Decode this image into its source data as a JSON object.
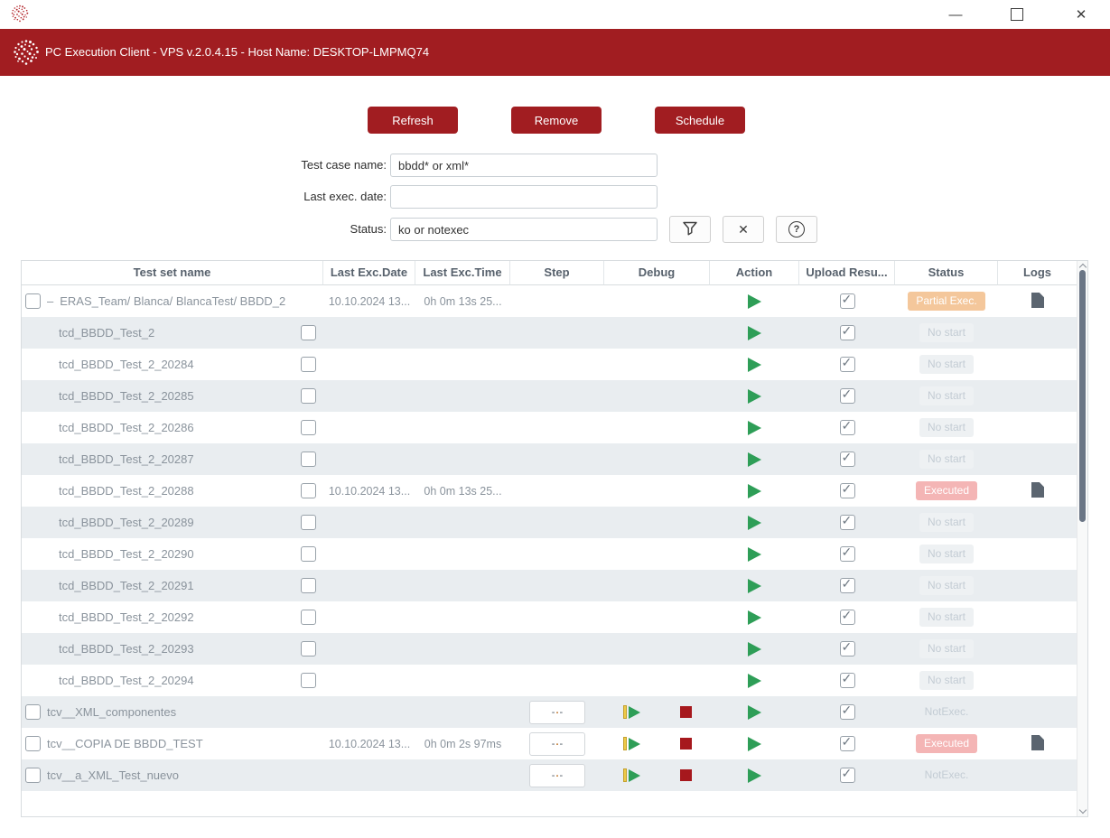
{
  "theme": {
    "brand_red": "#a11d21",
    "play_green": "#2e9e57",
    "debug_yellow": "#edca49",
    "stop_red": "#a6181d",
    "row_stripe": "#e9edf0",
    "partial_badge": "#f4c79b",
    "executed_badge": "#f4b5b5",
    "muted_status_text": "#c3ccd4",
    "row_text": "#8a939c",
    "header_text": "#57616c"
  },
  "titlebar": {
    "minimize_glyph": "—",
    "close_glyph": "✕",
    "icons": [
      "minimize-icon",
      "maximize-icon",
      "close-icon",
      "app-favicon-dotted-sphere"
    ]
  },
  "banner": {
    "title": "PC Execution Client - VPS v.2.0.4.15 - Host Name: DESKTOP-LMPMQ74",
    "logo": "dotted-sphere-logo"
  },
  "actions": {
    "refresh": "Refresh",
    "remove": "Remove",
    "schedule": "Schedule"
  },
  "filters": {
    "test_case": {
      "label": "Test case name:",
      "value": "bbdd* or xml*"
    },
    "last_exec_date": {
      "label": "Last exec. date:",
      "value": ""
    },
    "status": {
      "label": "Status:",
      "value": "ko or notexec"
    },
    "filter_icon": "funnel-icon",
    "clear_glyph": "✕",
    "help_glyph": "?"
  },
  "table": {
    "headers": [
      "Test set name",
      "Last Exc.Date",
      "Last Exc.Time",
      "Step",
      "Debug",
      "Action",
      "Upload Resu...",
      "Status",
      "Logs"
    ],
    "step_placeholder": "-.-",
    "rows": [
      {
        "kind": "parent",
        "checkbox": "left",
        "expander": "–",
        "name": "ERAS_Team/ Blanca/ BlancaTest/ BBDD_2",
        "date": "10.10.2024 13...",
        "time": "0h 0m 13s 25...",
        "step": false,
        "debug": false,
        "action": true,
        "upload": true,
        "status": {
          "label": "Partial Exec.",
          "kind": "partial"
        },
        "logs": true
      },
      {
        "kind": "child",
        "checkbox": "right",
        "name": "tcd_BBDD_Test_2",
        "date": "",
        "time": "",
        "step": false,
        "debug": false,
        "action": true,
        "upload": true,
        "status": {
          "label": "No start",
          "kind": "nostart"
        },
        "logs": false
      },
      {
        "kind": "child",
        "checkbox": "right",
        "name": "tcd_BBDD_Test_2_20284",
        "date": "",
        "time": "",
        "step": false,
        "debug": false,
        "action": true,
        "upload": true,
        "status": {
          "label": "No start",
          "kind": "nostart"
        },
        "logs": false
      },
      {
        "kind": "child",
        "checkbox": "right",
        "name": "tcd_BBDD_Test_2_20285",
        "date": "",
        "time": "",
        "step": false,
        "debug": false,
        "action": true,
        "upload": true,
        "status": {
          "label": "No start",
          "kind": "nostart"
        },
        "logs": false
      },
      {
        "kind": "child",
        "checkbox": "right",
        "name": "tcd_BBDD_Test_2_20286",
        "date": "",
        "time": "",
        "step": false,
        "debug": false,
        "action": true,
        "upload": true,
        "status": {
          "label": "No start",
          "kind": "nostart"
        },
        "logs": false
      },
      {
        "kind": "child",
        "checkbox": "right",
        "name": "tcd_BBDD_Test_2_20287",
        "date": "",
        "time": "",
        "step": false,
        "debug": false,
        "action": true,
        "upload": true,
        "status": {
          "label": "No start",
          "kind": "nostart"
        },
        "logs": false
      },
      {
        "kind": "child",
        "checkbox": "right",
        "name": "tcd_BBDD_Test_2_20288",
        "date": "10.10.2024 13...",
        "time": "0h 0m 13s 25...",
        "step": false,
        "debug": false,
        "action": true,
        "upload": true,
        "status": {
          "label": "Executed",
          "kind": "executed"
        },
        "logs": true
      },
      {
        "kind": "child",
        "checkbox": "right",
        "name": "tcd_BBDD_Test_2_20289",
        "date": "",
        "time": "",
        "step": false,
        "debug": false,
        "action": true,
        "upload": true,
        "status": {
          "label": "No start",
          "kind": "nostart"
        },
        "logs": false
      },
      {
        "kind": "child",
        "checkbox": "right",
        "name": "tcd_BBDD_Test_2_20290",
        "date": "",
        "time": "",
        "step": false,
        "debug": false,
        "action": true,
        "upload": true,
        "status": {
          "label": "No start",
          "kind": "nostart"
        },
        "logs": false
      },
      {
        "kind": "child",
        "checkbox": "right",
        "name": "tcd_BBDD_Test_2_20291",
        "date": "",
        "time": "",
        "step": false,
        "debug": false,
        "action": true,
        "upload": true,
        "status": {
          "label": "No start",
          "kind": "nostart"
        },
        "logs": false
      },
      {
        "kind": "child",
        "checkbox": "right",
        "name": "tcd_BBDD_Test_2_20292",
        "date": "",
        "time": "",
        "step": false,
        "debug": false,
        "action": true,
        "upload": true,
        "status": {
          "label": "No start",
          "kind": "nostart"
        },
        "logs": false
      },
      {
        "kind": "child",
        "checkbox": "right",
        "name": "tcd_BBDD_Test_2_20293",
        "date": "",
        "time": "",
        "step": false,
        "debug": false,
        "action": true,
        "upload": true,
        "status": {
          "label": "No start",
          "kind": "nostart"
        },
        "logs": false
      },
      {
        "kind": "child",
        "checkbox": "right",
        "name": "tcd_BBDD_Test_2_20294",
        "date": "",
        "time": "",
        "step": false,
        "debug": false,
        "action": true,
        "upload": true,
        "status": {
          "label": "No start",
          "kind": "nostart"
        },
        "logs": false
      },
      {
        "kind": "leaf",
        "checkbox": "left",
        "name": "tcv__XML_componentes",
        "date": "",
        "time": "",
        "step": true,
        "debug": true,
        "action": true,
        "upload": true,
        "status": {
          "label": "NotExec.",
          "kind": "notexec"
        },
        "logs": false
      },
      {
        "kind": "leaf",
        "checkbox": "left",
        "name": "tcv__COPIA DE BBDD_TEST",
        "date": "10.10.2024 13...",
        "time": "0h 0m 2s 97ms",
        "step": true,
        "debug": true,
        "action": true,
        "upload": true,
        "status": {
          "label": "Executed",
          "kind": "executed"
        },
        "logs": true
      },
      {
        "kind": "leaf",
        "checkbox": "left",
        "name": "tcv__a_XML_Test_nuevo",
        "date": "",
        "time": "",
        "step": true,
        "debug": true,
        "action": true,
        "upload": true,
        "status": {
          "label": "NotExec.",
          "kind": "notexec"
        },
        "logs": false
      }
    ]
  }
}
